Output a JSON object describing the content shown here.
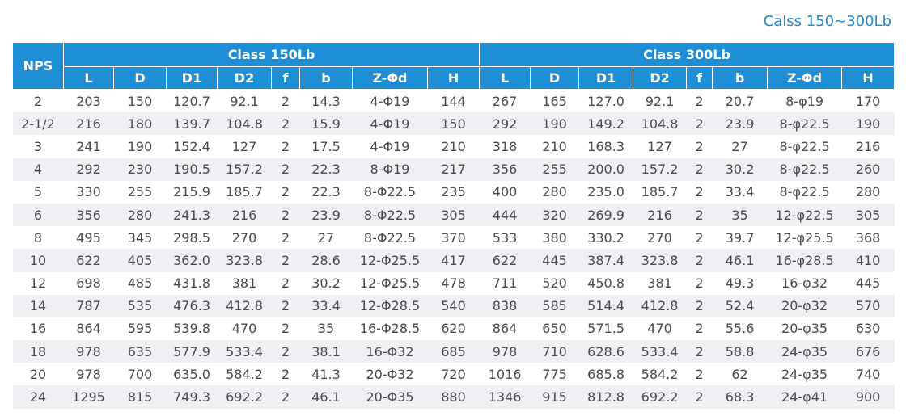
{
  "header": {
    "title": "Calss 150~300Lb"
  },
  "table": {
    "top_headers": [
      "NPS",
      "Class 150Lb",
      "Class 300Lb"
    ],
    "columns": [
      "L",
      "D",
      "D1",
      "D2",
      "f",
      "b",
      "Z-Φd",
      "H",
      "L",
      "D",
      "D1",
      "D2",
      "f",
      "b",
      "Z-Φd",
      "H"
    ],
    "rows": [
      [
        "2",
        "203",
        "150",
        "120.7",
        "92.1",
        "2",
        "14.3",
        "4-Φ19",
        "144",
        "267",
        "165",
        "127.0",
        "92.1",
        "2",
        "20.7",
        "8-φ19",
        "170"
      ],
      [
        "2-1/2",
        "216",
        "180",
        "139.7",
        "104.8",
        "2",
        "15.9",
        "4-Φ19",
        "150",
        "292",
        "190",
        "149.2",
        "104.8",
        "2",
        "23.9",
        "8-φ22.5",
        "190"
      ],
      [
        "3",
        "241",
        "190",
        "152.4",
        "127",
        "2",
        "17.5",
        "4-Φ19",
        "210",
        "318",
        "210",
        "168.3",
        "127",
        "2",
        "27",
        "8-φ22.5",
        "216"
      ],
      [
        "4",
        "292",
        "230",
        "190.5",
        "157.2",
        "2",
        "22.3",
        "8-Φ19",
        "217",
        "356",
        "255",
        "200.0",
        "157.2",
        "2",
        "30.2",
        "8-φ22.5",
        "260"
      ],
      [
        "5",
        "330",
        "255",
        "215.9",
        "185.7",
        "2",
        "22.3",
        "8-Φ22.5",
        "235",
        "400",
        "280",
        "235.0",
        "185.7",
        "2",
        "33.4",
        "8-φ22.5",
        "280"
      ],
      [
        "6",
        "356",
        "280",
        "241.3",
        "216",
        "2",
        "23.9",
        "8-Φ22.5",
        "305",
        "444",
        "320",
        "269.9",
        "216",
        "2",
        "35",
        "12-φ22.5",
        "305"
      ],
      [
        "8",
        "495",
        "345",
        "298.5",
        "270",
        "2",
        "27",
        "8-Φ22.5",
        "370",
        "533",
        "380",
        "330.2",
        "270",
        "2",
        "39.7",
        "12-φ25.5",
        "368"
      ],
      [
        "10",
        "622",
        "405",
        "362.0",
        "323.8",
        "2",
        "28.6",
        "12-Φ25.5",
        "417",
        "622",
        "445",
        "387.4",
        "323.8",
        "2",
        "46.1",
        "16-φ28.5",
        "410"
      ],
      [
        "12",
        "698",
        "485",
        "431.8",
        "381",
        "2",
        "30.2",
        "12-Φ25.5",
        "478",
        "711",
        "520",
        "450.8",
        "381",
        "2",
        "49.3",
        "16-φ32",
        "445"
      ],
      [
        "14",
        "787",
        "535",
        "476.3",
        "412.8",
        "2",
        "33.4",
        "12-Φ28.5",
        "540",
        "838",
        "585",
        "514.4",
        "412.8",
        "2",
        "52.4",
        "20-φ32",
        "570"
      ],
      [
        "16",
        "864",
        "595",
        "539.8",
        "470",
        "2",
        "35",
        "16-Φ28.5",
        "620",
        "864",
        "650",
        "571.5",
        "470",
        "2",
        "55.6",
        "20-φ35",
        "630"
      ],
      [
        "18",
        "978",
        "635",
        "577.9",
        "533.4",
        "2",
        "38.1",
        "16-Φ32",
        "685",
        "978",
        "710",
        "628.6",
        "533.4",
        "2",
        "58.8",
        "24-φ35",
        "676"
      ],
      [
        "20",
        "978",
        "700",
        "635.0",
        "584.2",
        "2",
        "41.3",
        "20-Φ32",
        "720",
        "1016",
        "775",
        "685.8",
        "584.2",
        "2",
        "62",
        "24-φ35",
        "740"
      ],
      [
        "24",
        "1295",
        "815",
        "749.3",
        "692.2",
        "2",
        "46.1",
        "20-Φ35",
        "880",
        "1346",
        "915",
        "812.8",
        "692.2",
        "2",
        "68.3",
        "24-φ41",
        "900"
      ]
    ]
  }
}
